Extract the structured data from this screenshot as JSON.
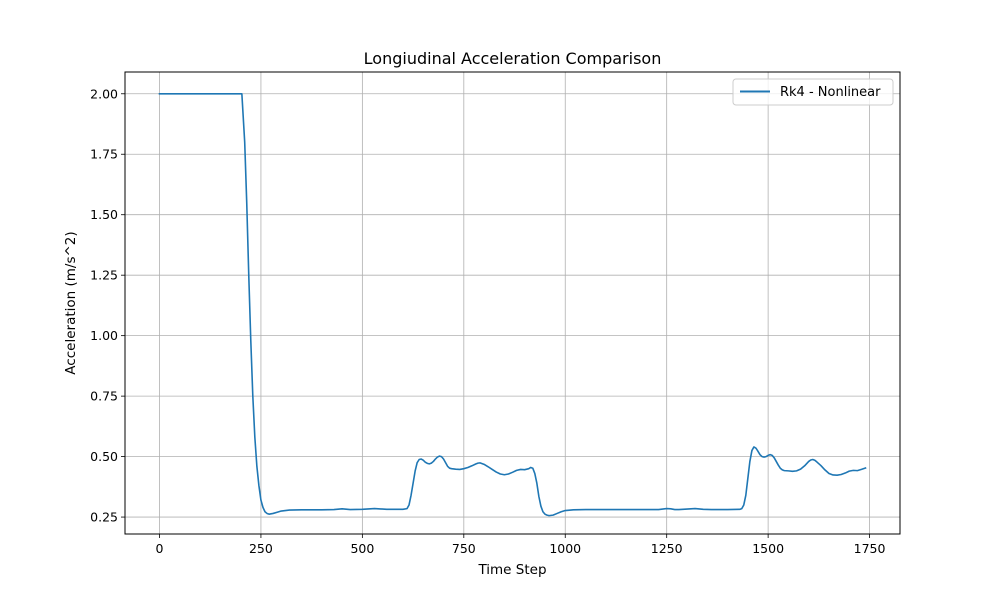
{
  "chart_data": {
    "type": "line",
    "title": "Longiudinal Acceleration Comparison",
    "xlabel": "Time Step",
    "ylabel": "Acceleration (m/s^2)",
    "xlim": [
      -85,
      1825
    ],
    "ylim": [
      0.18,
      2.09
    ],
    "xticks": [
      0,
      250,
      500,
      750,
      1000,
      1250,
      1500,
      1750
    ],
    "xtick_labels": [
      "0",
      "250",
      "500",
      "750",
      "1000",
      "1250",
      "1500",
      "1750"
    ],
    "yticks": [
      0.25,
      0.5,
      0.75,
      1.0,
      1.25,
      1.5,
      1.75,
      2.0
    ],
    "ytick_labels": [
      "0.25",
      "0.50",
      "0.75",
      "1.00",
      "1.25",
      "1.50",
      "1.75",
      "2.00"
    ],
    "grid": true,
    "legend_position": "top-right",
    "series": [
      {
        "name": "Rk4 - Nonlinear",
        "color": "#1f77b4",
        "points": [
          [
            0,
            2.0
          ],
          [
            200,
            2.0
          ],
          [
            203,
            2.0
          ],
          [
            210,
            1.8
          ],
          [
            215,
            1.55
          ],
          [
            220,
            1.25
          ],
          [
            225,
            0.98
          ],
          [
            230,
            0.75
          ],
          [
            235,
            0.58
          ],
          [
            240,
            0.46
          ],
          [
            245,
            0.38
          ],
          [
            250,
            0.32
          ],
          [
            255,
            0.29
          ],
          [
            260,
            0.272
          ],
          [
            265,
            0.265
          ],
          [
            270,
            0.262
          ],
          [
            280,
            0.265
          ],
          [
            290,
            0.27
          ],
          [
            300,
            0.275
          ],
          [
            320,
            0.279
          ],
          [
            350,
            0.28
          ],
          [
            400,
            0.28
          ],
          [
            430,
            0.281
          ],
          [
            450,
            0.284
          ],
          [
            470,
            0.281
          ],
          [
            500,
            0.282
          ],
          [
            530,
            0.285
          ],
          [
            560,
            0.282
          ],
          [
            600,
            0.282
          ],
          [
            610,
            0.285
          ],
          [
            615,
            0.3
          ],
          [
            620,
            0.34
          ],
          [
            625,
            0.39
          ],
          [
            630,
            0.44
          ],
          [
            635,
            0.475
          ],
          [
            640,
            0.488
          ],
          [
            645,
            0.49
          ],
          [
            650,
            0.485
          ],
          [
            655,
            0.477
          ],
          [
            660,
            0.472
          ],
          [
            665,
            0.47
          ],
          [
            670,
            0.473
          ],
          [
            675,
            0.48
          ],
          [
            680,
            0.49
          ],
          [
            685,
            0.498
          ],
          [
            690,
            0.502
          ],
          [
            695,
            0.5
          ],
          [
            700,
            0.49
          ],
          [
            705,
            0.475
          ],
          [
            710,
            0.46
          ],
          [
            715,
            0.452
          ],
          [
            720,
            0.45
          ],
          [
            730,
            0.448
          ],
          [
            740,
            0.447
          ],
          [
            750,
            0.45
          ],
          [
            760,
            0.455
          ],
          [
            770,
            0.462
          ],
          [
            780,
            0.47
          ],
          [
            785,
            0.473
          ],
          [
            790,
            0.474
          ],
          [
            800,
            0.468
          ],
          [
            810,
            0.458
          ],
          [
            820,
            0.447
          ],
          [
            830,
            0.436
          ],
          [
            840,
            0.428
          ],
          [
            850,
            0.425
          ],
          [
            860,
            0.428
          ],
          [
            870,
            0.435
          ],
          [
            880,
            0.443
          ],
          [
            890,
            0.447
          ],
          [
            900,
            0.446
          ],
          [
            910,
            0.45
          ],
          [
            915,
            0.455
          ],
          [
            920,
            0.452
          ],
          [
            925,
            0.43
          ],
          [
            930,
            0.39
          ],
          [
            935,
            0.335
          ],
          [
            940,
            0.295
          ],
          [
            945,
            0.272
          ],
          [
            950,
            0.262
          ],
          [
            955,
            0.258
          ],
          [
            960,
            0.256
          ],
          [
            970,
            0.258
          ],
          [
            980,
            0.265
          ],
          [
            990,
            0.272
          ],
          [
            1000,
            0.277
          ],
          [
            1020,
            0.28
          ],
          [
            1050,
            0.281
          ],
          [
            1100,
            0.281
          ],
          [
            1150,
            0.281
          ],
          [
            1200,
            0.281
          ],
          [
            1230,
            0.281
          ],
          [
            1250,
            0.285
          ],
          [
            1260,
            0.284
          ],
          [
            1270,
            0.281
          ],
          [
            1280,
            0.281
          ],
          [
            1300,
            0.283
          ],
          [
            1320,
            0.285
          ],
          [
            1340,
            0.282
          ],
          [
            1360,
            0.281
          ],
          [
            1400,
            0.281
          ],
          [
            1430,
            0.282
          ],
          [
            1435,
            0.285
          ],
          [
            1440,
            0.3
          ],
          [
            1445,
            0.34
          ],
          [
            1450,
            0.41
          ],
          [
            1455,
            0.48
          ],
          [
            1460,
            0.525
          ],
          [
            1465,
            0.54
          ],
          [
            1470,
            0.535
          ],
          [
            1475,
            0.522
          ],
          [
            1480,
            0.508
          ],
          [
            1485,
            0.5
          ],
          [
            1490,
            0.498
          ],
          [
            1495,
            0.5
          ],
          [
            1500,
            0.505
          ],
          [
            1505,
            0.508
          ],
          [
            1510,
            0.505
          ],
          [
            1515,
            0.495
          ],
          [
            1520,
            0.48
          ],
          [
            1525,
            0.465
          ],
          [
            1530,
            0.452
          ],
          [
            1535,
            0.445
          ],
          [
            1540,
            0.442
          ],
          [
            1550,
            0.441
          ],
          [
            1560,
            0.439
          ],
          [
            1570,
            0.441
          ],
          [
            1580,
            0.448
          ],
          [
            1590,
            0.462
          ],
          [
            1600,
            0.48
          ],
          [
            1605,
            0.486
          ],
          [
            1610,
            0.488
          ],
          [
            1615,
            0.485
          ],
          [
            1620,
            0.478
          ],
          [
            1630,
            0.463
          ],
          [
            1640,
            0.445
          ],
          [
            1650,
            0.43
          ],
          [
            1660,
            0.424
          ],
          [
            1670,
            0.423
          ],
          [
            1680,
            0.426
          ],
          [
            1690,
            0.432
          ],
          [
            1700,
            0.44
          ],
          [
            1710,
            0.443
          ],
          [
            1720,
            0.442
          ],
          [
            1730,
            0.447
          ],
          [
            1740,
            0.453
          ]
        ]
      }
    ]
  }
}
